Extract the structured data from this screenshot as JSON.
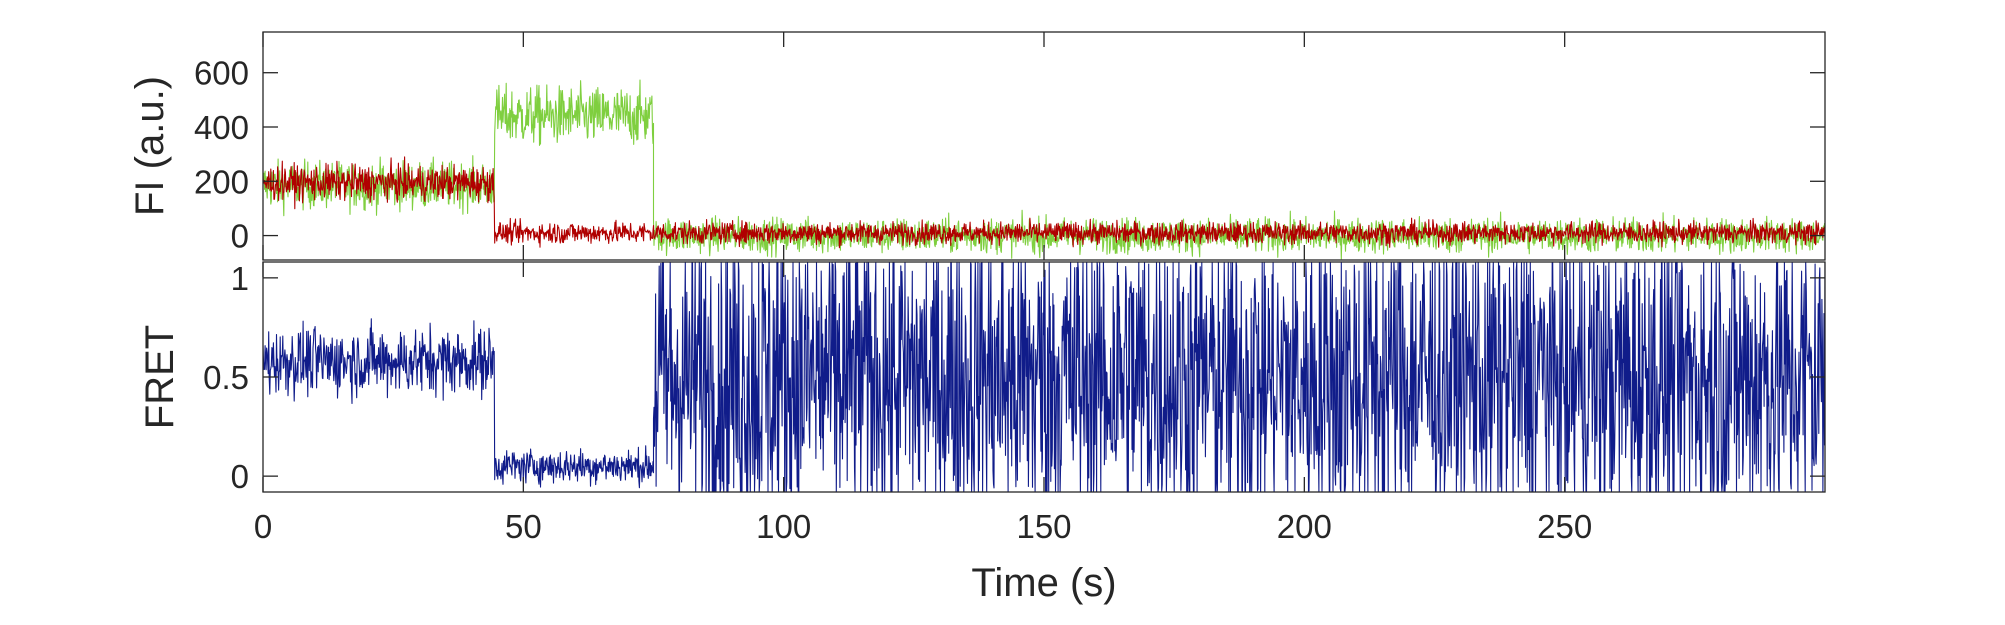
{
  "chart_data": [
    {
      "panel": "top",
      "type": "line",
      "ylabel": "FI (a.u.)",
      "xlim": [
        0,
        300
      ],
      "ylim": [
        -90,
        750
      ],
      "yticks": [
        0,
        200,
        400,
        600
      ],
      "yticklabels": [
        "0",
        "200",
        "400",
        "600"
      ],
      "grid": false,
      "series": [
        {
          "color": "#7fcf3f",
          "segments": [
            {
              "x_start": 0,
              "x_end": 44.5,
              "mean": 185,
              "noise": 60
            },
            {
              "x_start": 44.5,
              "x_end": 75,
              "mean": 440,
              "noise": 75
            },
            {
              "x_start": 75,
              "x_end": 300,
              "mean": 0,
              "noise": 45
            }
          ]
        },
        {
          "color": "#b00000",
          "segments": [
            {
              "x_start": 0,
              "x_end": 44.5,
              "mean": 195,
              "noise": 45
            },
            {
              "x_start": 44.5,
              "x_end": 300,
              "mean": 10,
              "noise": 28
            }
          ]
        }
      ]
    },
    {
      "panel": "bottom",
      "type": "line",
      "ylabel": "FRET",
      "xlabel": "Time (s)",
      "xlim": [
        0,
        300
      ],
      "ylim": [
        -0.08,
        1.08
      ],
      "yticks": [
        0,
        0.5,
        1
      ],
      "yticklabels": [
        "0",
        "0.5",
        "1"
      ],
      "xticks": [
        0,
        50,
        100,
        150,
        200,
        250
      ],
      "xticklabels": [
        "0",
        "50",
        "100",
        "150",
        "200",
        "250"
      ],
      "grid": false,
      "series": [
        {
          "color": "#101c8a",
          "segments": [
            {
              "x_start": 0,
              "x_end": 44.5,
              "mean": 0.58,
              "noise": 0.12
            },
            {
              "x_start": 44.5,
              "x_end": 75,
              "mean": 0.05,
              "noise": 0.06
            },
            {
              "x_start": 75,
              "x_end": 300,
              "mean": 0.5,
              "noise": 0.6
            }
          ]
        }
      ]
    }
  ]
}
